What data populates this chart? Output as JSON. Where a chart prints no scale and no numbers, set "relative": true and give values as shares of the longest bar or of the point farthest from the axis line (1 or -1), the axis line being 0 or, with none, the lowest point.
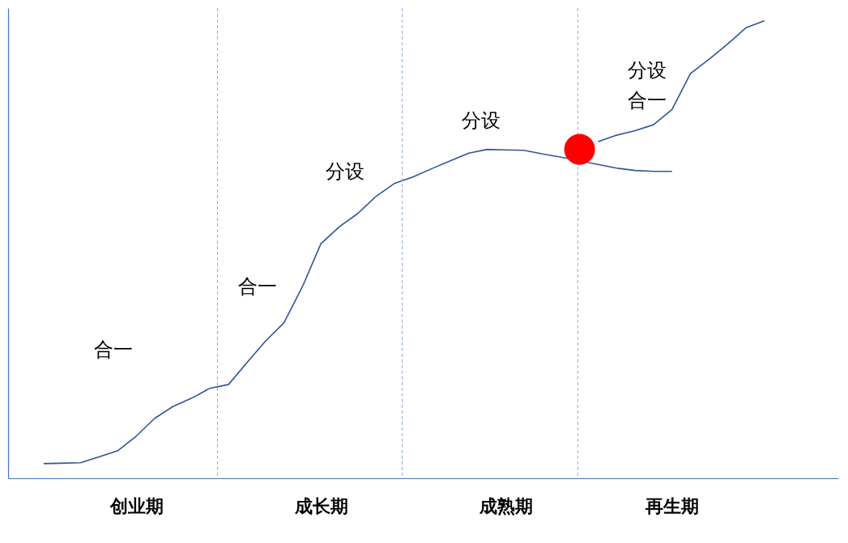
{
  "chart_data": {
    "type": "line",
    "relative": true,
    "tick_labels": "x",
    "line_style": "solid",
    "categories": [
      null,
      null,
      null,
      null,
      null,
      null,
      "创业期",
      null,
      null,
      null,
      null,
      null,
      null,
      null,
      null,
      null,
      "成长期",
      null,
      null,
      null,
      null,
      null,
      null,
      null,
      null,
      null,
      "成熟期",
      null,
      null,
      null,
      null,
      null,
      null,
      null,
      null,
      "再生期",
      null,
      null,
      null,
      null,
      null,
      null,
      null,
      null,
      null
    ],
    "series": [
      {
        "color": "#2f5597",
        "values": [
          null,
          0.032,
          0.033,
          0.034,
          0.047,
          0.06,
          0.092,
          0.131,
          0.157,
          0.175,
          0.197,
          0.205,
          0.253,
          0.3,
          0.34,
          0.419,
          0.513,
          0.55,
          0.579,
          0.617,
          0.645,
          0.659,
          0.677,
          0.694,
          0.711,
          0.719,
          0.718,
          0.717,
          0.709,
          0.702,
          null,
          0.686,
          0.678,
          0.673,
          0.671,
          0.671,
          null,
          null,
          null,
          null,
          null,
          null,
          null,
          null,
          null
        ]
      },
      {
        "color": "#2f5597",
        "values": [
          null,
          null,
          null,
          null,
          null,
          null,
          null,
          null,
          null,
          null,
          null,
          null,
          null,
          null,
          null,
          null,
          null,
          null,
          null,
          null,
          null,
          null,
          null,
          null,
          null,
          null,
          null,
          null,
          null,
          null,
          null,
          0.736,
          0.75,
          0.76,
          0.773,
          0.806,
          0.885,
          0.916,
          0.949,
          0.985,
          1.0,
          null,
          null,
          null,
          null
        ]
      },
      {
        "type": "scatter",
        "marker": "circle",
        "color": "#ff0000",
        "values": [
          null,
          null,
          null,
          null,
          null,
          null,
          null,
          null,
          null,
          null,
          null,
          null,
          null,
          null,
          null,
          null,
          null,
          null,
          null,
          null,
          null,
          null,
          null,
          null,
          null,
          null,
          null,
          null,
          null,
          null,
          0.719,
          null,
          null,
          null,
          null,
          null,
          null,
          null,
          null,
          null,
          null,
          null,
          null,
          null,
          null
        ]
      }
    ],
    "annotations": [
      "合一",
      "合一",
      "分设",
      "分设",
      "分设",
      "合一"
    ]
  }
}
